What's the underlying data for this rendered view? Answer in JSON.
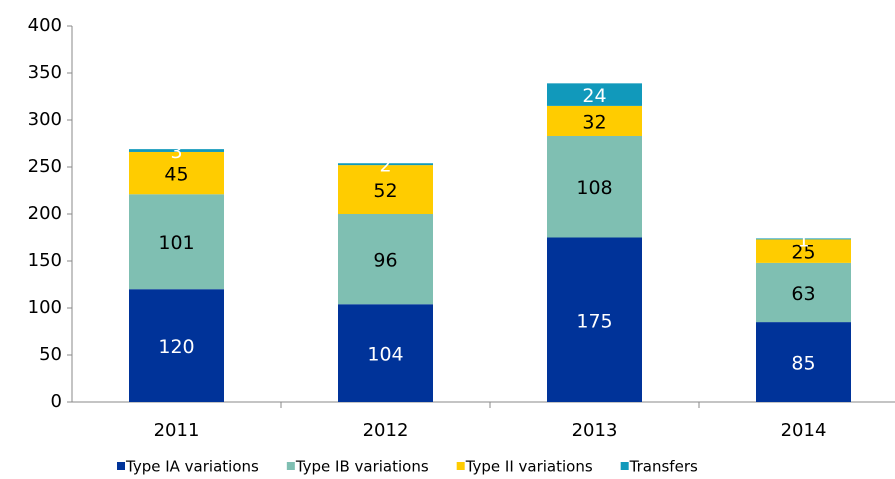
{
  "chart_data": {
    "type": "stacked_bar",
    "categories": [
      "2011",
      "2012",
      "2013",
      "2014"
    ],
    "series": [
      {
        "name": "Type IA variations",
        "color": "#003399",
        "label_color": "#ffffff",
        "values": [
          120,
          104,
          175,
          85
        ]
      },
      {
        "name": "Type IB variations",
        "color": "#7fbfb2",
        "label_color": "#000000",
        "values": [
          101,
          96,
          108,
          63
        ]
      },
      {
        "name": "Type II variations",
        "color": "#ffcc00",
        "label_color": "#000000",
        "values": [
          45,
          52,
          32,
          25
        ]
      },
      {
        "name": "Transfers",
        "color": "#1199bb",
        "label_color": "#ffffff",
        "values": [
          3,
          2,
          24,
          1
        ]
      }
    ],
    "ylim": [
      0,
      400
    ],
    "yticks": [
      0,
      50,
      100,
      150,
      200,
      250,
      300,
      350,
      400
    ],
    "grid": false,
    "legend": "bottom"
  }
}
